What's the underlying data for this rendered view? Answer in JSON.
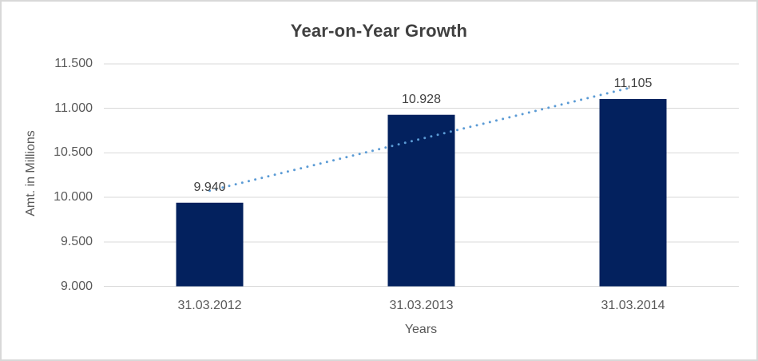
{
  "chart_data": {
    "type": "bar",
    "title": "Year-on-Year Growth",
    "xlabel": "Years",
    "ylabel": "Amt. in Millions",
    "categories": [
      "31.03.2012",
      "31.03.2013",
      "31.03.2014"
    ],
    "values": [
      9940,
      10928,
      11105
    ],
    "data_labels": [
      "9.940",
      "10.928",
      "11,105"
    ],
    "ylim": [
      9000,
      11500
    ],
    "y_step": 500,
    "y_ticks": [
      {
        "value": 9000,
        "label": "9.000"
      },
      {
        "value": 9500,
        "label": "9.500"
      },
      {
        "value": 10000,
        "label": "10.000"
      },
      {
        "value": 10500,
        "label": "10.500"
      },
      {
        "value": 11000,
        "label": "11.000"
      },
      {
        "value": 11500,
        "label": "11.500"
      }
    ],
    "grid": "horizontal",
    "legend": "none",
    "trendline": {
      "type": "linear",
      "style": "dotted"
    },
    "colors": {
      "bar": "#03215E",
      "trendline": "#5B9BD5",
      "gridline": "#D9D9D9",
      "title_text": "#404040",
      "axis_text": "#595959",
      "data_label_text": "#404040",
      "background": "#FFFFFF",
      "border": "#D8D8D8"
    }
  }
}
